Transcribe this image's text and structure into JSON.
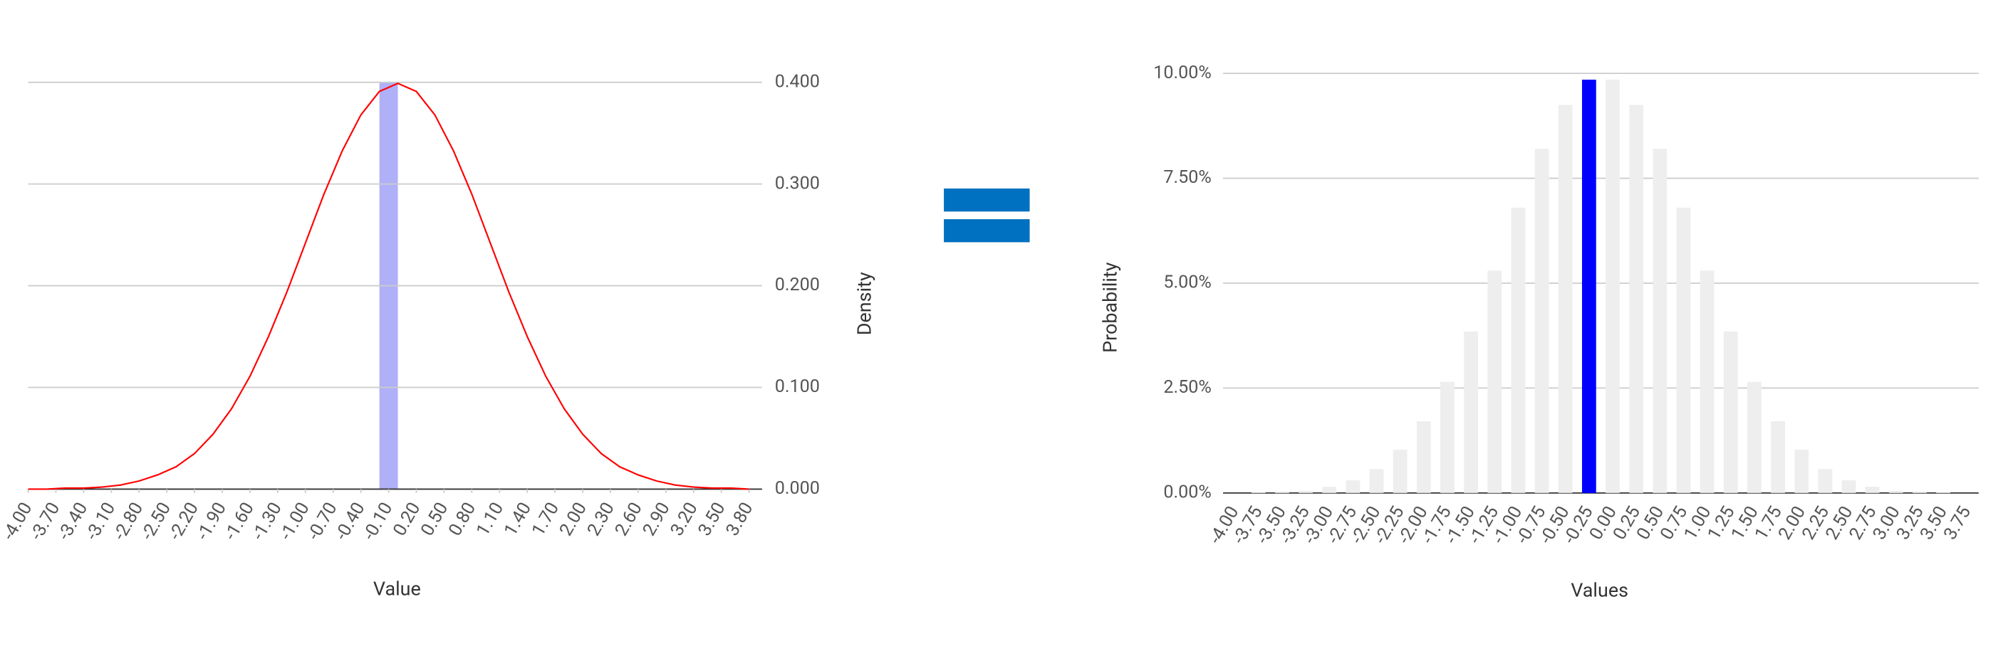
{
  "chart_data": [
    {
      "type": "line",
      "x_label": "Value",
      "y_label": "Density",
      "color": "#ff0000",
      "grid": true,
      "x": [
        -4.0,
        -3.8,
        -3.6,
        -3.4,
        -3.2,
        -3.0,
        -2.8,
        -2.6,
        -2.4,
        -2.2,
        -2.0,
        -1.8,
        -1.6,
        -1.4,
        -1.2,
        -1.0,
        -0.8,
        -0.6,
        -0.4,
        -0.2,
        0.0,
        0.2,
        0.4,
        0.6,
        0.8,
        1.0,
        1.2,
        1.4,
        1.6,
        1.8,
        2.0,
        2.2,
        2.4,
        2.6,
        2.8,
        3.0,
        3.2,
        3.4,
        3.6,
        3.8
      ],
      "values": [
        0.0,
        0.0,
        0.001,
        0.001,
        0.002,
        0.004,
        0.008,
        0.014,
        0.022,
        0.035,
        0.054,
        0.079,
        0.111,
        0.15,
        0.194,
        0.242,
        0.29,
        0.333,
        0.368,
        0.391,
        0.399,
        0.391,
        0.368,
        0.333,
        0.29,
        0.242,
        0.194,
        0.15,
        0.111,
        0.079,
        0.054,
        0.035,
        0.022,
        0.014,
        0.008,
        0.004,
        0.002,
        0.001,
        0.001,
        0.0
      ],
      "highlight": {
        "x": [
          -0.2,
          0.0
        ],
        "color": "#b0b0f8"
      },
      "xlim": [
        -4.0,
        3.94
      ],
      "ylim": [
        0,
        0.4
      ],
      "xticks": [
        {
          "value": -4.0,
          "label": "-4.00"
        },
        {
          "value": -3.7,
          "label": "-3.70"
        },
        {
          "value": -3.4,
          "label": "-3.40"
        },
        {
          "value": -3.1,
          "label": "-3.10"
        },
        {
          "value": -2.8,
          "label": "-2.80"
        },
        {
          "value": -2.5,
          "label": "-2.50"
        },
        {
          "value": -2.2,
          "label": "-2.20"
        },
        {
          "value": -1.9,
          "label": "-1.90"
        },
        {
          "value": -1.6,
          "label": "-1.60"
        },
        {
          "value": -1.3,
          "label": "-1.30"
        },
        {
          "value": -1.0,
          "label": "-1.00"
        },
        {
          "value": -0.7,
          "label": "-0.70"
        },
        {
          "value": -0.4,
          "label": "-0.40"
        },
        {
          "value": -0.1,
          "label": "-0.10"
        },
        {
          "value": 0.2,
          "label": "0.20"
        },
        {
          "value": 0.5,
          "label": "0.50"
        },
        {
          "value": 0.8,
          "label": "0.80"
        },
        {
          "value": 1.1,
          "label": "1.10"
        },
        {
          "value": 1.4,
          "label": "1.40"
        },
        {
          "value": 1.7,
          "label": "1.70"
        },
        {
          "value": 2.0,
          "label": "2.00"
        },
        {
          "value": 2.3,
          "label": "2.30"
        },
        {
          "value": 2.6,
          "label": "2.60"
        },
        {
          "value": 2.9,
          "label": "2.90"
        },
        {
          "value": 3.2,
          "label": "3.20"
        },
        {
          "value": 3.5,
          "label": "3.50"
        },
        {
          "value": 3.8,
          "label": "3.80"
        }
      ],
      "yticks": [
        {
          "value": 0,
          "label": "0.000"
        },
        {
          "value": 0.1,
          "label": "0.100"
        },
        {
          "value": 0.2,
          "label": "0.200"
        },
        {
          "value": 0.3,
          "label": "0.300"
        },
        {
          "value": 0.4,
          "label": "0.400"
        }
      ]
    },
    {
      "type": "bar",
      "x_label": "Values",
      "y_label": "Probability",
      "grid": true,
      "categories": [
        "-4.00",
        "-3.75",
        "-3.50",
        "-3.25",
        "-3.00",
        "-2.75",
        "-2.50",
        "-2.25",
        "-2.00",
        "-1.75",
        "-1.50",
        "-1.25",
        "-1.00",
        "-0.75",
        "-0.50",
        "-0.25",
        "0.00",
        "0.25",
        "0.50",
        "0.75",
        "1.00",
        "1.25",
        "1.50",
        "1.75",
        "2.00",
        "2.25",
        "2.50",
        "2.75",
        "3.00",
        "3.25",
        "3.50",
        "3.75"
      ],
      "values": [
        0,
        0.02,
        0.03,
        0.05,
        0.15,
        0.3,
        0.57,
        1.03,
        1.71,
        2.65,
        3.85,
        5.3,
        6.8,
        8.2,
        9.25,
        9.85,
        9.85,
        9.25,
        8.2,
        6.8,
        5.3,
        3.85,
        2.65,
        1.71,
        1.03,
        0.57,
        0.3,
        0.15,
        0.05,
        0.03,
        0.02,
        0
      ],
      "colors": [
        "#eeeeee",
        "#eeeeee",
        "#eeeeee",
        "#eeeeee",
        "#eeeeee",
        "#eeeeee",
        "#eeeeee",
        "#eeeeee",
        "#eeeeee",
        "#eeeeee",
        "#eeeeee",
        "#eeeeee",
        "#eeeeee",
        "#eeeeee",
        "#eeeeee",
        "#0000ff",
        "#eeeeee",
        "#eeeeee",
        "#eeeeee",
        "#eeeeee",
        "#eeeeee",
        "#eeeeee",
        "#eeeeee",
        "#eeeeee",
        "#eeeeee",
        "#eeeeee",
        "#eeeeee",
        "#eeeeee",
        "#eeeeee",
        "#eeeeee",
        "#eeeeee",
        "#eeeeee"
      ],
      "ylim": [
        0,
        10
      ],
      "yticks": [
        {
          "value": 0,
          "label": "0.00%"
        },
        {
          "value": 2.5,
          "label": "2.50%"
        },
        {
          "value": 5,
          "label": "5.00%"
        },
        {
          "value": 7.5,
          "label": "7.50%"
        },
        {
          "value": 10,
          "label": "10.00%"
        }
      ]
    }
  ]
}
